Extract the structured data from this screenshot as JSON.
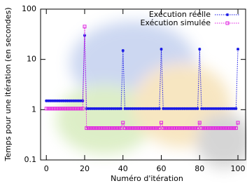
{
  "chart_data": {
    "type": "line",
    "x": [
      0,
      1,
      2,
      3,
      4,
      5,
      6,
      7,
      8,
      9,
      10,
      11,
      12,
      13,
      14,
      15,
      16,
      17,
      18,
      19,
      20,
      21,
      22,
      23,
      24,
      25,
      26,
      27,
      28,
      29,
      30,
      31,
      32,
      33,
      34,
      35,
      36,
      37,
      38,
      39,
      40,
      41,
      42,
      43,
      44,
      45,
      46,
      47,
      48,
      49,
      50,
      51,
      52,
      53,
      54,
      55,
      56,
      57,
      58,
      59,
      60,
      61,
      62,
      63,
      64,
      65,
      66,
      67,
      68,
      69,
      70,
      71,
      72,
      73,
      74,
      75,
      76,
      77,
      78,
      79,
      80,
      81,
      82,
      83,
      84,
      85,
      86,
      87,
      88,
      89,
      90,
      91,
      92,
      93,
      94,
      95,
      96,
      97,
      98,
      99,
      100
    ],
    "series": [
      {
        "name": "Exécution réelle",
        "color": "#1a1ae6",
        "marker": "star",
        "values": [
          1.5,
          1.5,
          1.5,
          1.5,
          1.5,
          1.5,
          1.5,
          1.5,
          1.5,
          1.5,
          1.5,
          1.5,
          1.5,
          1.5,
          1.5,
          1.5,
          1.5,
          1.5,
          1.5,
          1.5,
          30,
          1.05,
          1.05,
          1.05,
          1.05,
          1.05,
          1.05,
          1.05,
          1.05,
          1.05,
          1.05,
          1.05,
          1.05,
          1.05,
          1.05,
          1.05,
          1.05,
          1.05,
          1.05,
          1.05,
          15,
          1.05,
          1.05,
          1.05,
          1.05,
          1.05,
          1.05,
          1.05,
          1.05,
          1.05,
          1.05,
          1.05,
          1.05,
          1.05,
          1.05,
          1.05,
          1.05,
          1.05,
          1.05,
          1.05,
          16,
          1.05,
          1.05,
          1.05,
          1.05,
          1.05,
          1.05,
          1.05,
          1.05,
          1.05,
          1.05,
          1.05,
          1.05,
          1.05,
          1.05,
          1.05,
          1.05,
          1.05,
          1.05,
          1.05,
          16,
          1.05,
          1.05,
          1.05,
          1.05,
          1.05,
          1.05,
          1.05,
          1.05,
          1.05,
          1.05,
          1.05,
          1.05,
          1.05,
          1.05,
          1.05,
          1.05,
          1.05,
          1.05,
          1.05,
          16
        ]
      },
      {
        "name": "Exécution simulée",
        "color": "#e020e0",
        "marker": "square",
        "values": [
          1.05,
          1.05,
          1.05,
          1.05,
          1.05,
          1.05,
          1.05,
          1.05,
          1.05,
          1.05,
          1.05,
          1.05,
          1.05,
          1.05,
          1.05,
          1.05,
          1.05,
          1.05,
          1.05,
          1.05,
          45,
          0.43,
          0.43,
          0.43,
          0.43,
          0.43,
          0.43,
          0.43,
          0.43,
          0.43,
          0.43,
          0.43,
          0.43,
          0.43,
          0.43,
          0.43,
          0.43,
          0.43,
          0.43,
          0.43,
          0.55,
          0.43,
          0.43,
          0.43,
          0.43,
          0.43,
          0.43,
          0.43,
          0.43,
          0.43,
          0.43,
          0.43,
          0.43,
          0.43,
          0.43,
          0.43,
          0.43,
          0.43,
          0.43,
          0.43,
          0.55,
          0.43,
          0.43,
          0.43,
          0.43,
          0.43,
          0.43,
          0.43,
          0.43,
          0.43,
          0.43,
          0.43,
          0.43,
          0.43,
          0.43,
          0.43,
          0.43,
          0.43,
          0.43,
          0.43,
          0.55,
          0.43,
          0.43,
          0.43,
          0.43,
          0.43,
          0.43,
          0.43,
          0.43,
          0.43,
          0.43,
          0.43,
          0.43,
          0.43,
          0.43,
          0.43,
          0.43,
          0.43,
          0.43,
          0.43,
          0.55
        ]
      }
    ],
    "x_label": "Numéro d'itération",
    "y_label": "Temps pour une itération (en secondes)",
    "xlim": [
      -3,
      104
    ],
    "xticks": [
      0,
      20,
      40,
      60,
      80,
      100
    ],
    "ylim": [
      0.1,
      100
    ],
    "yticks": [
      0.1,
      1,
      10,
      100
    ],
    "y_scale": "log",
    "legend": "top-right"
  }
}
